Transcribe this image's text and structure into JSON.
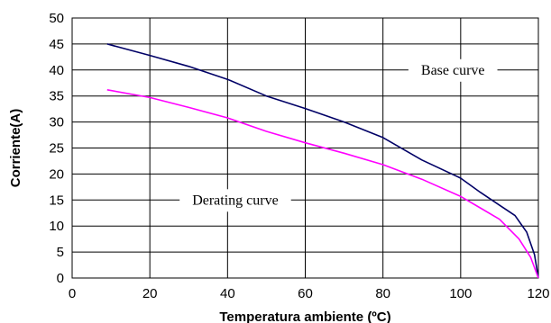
{
  "chart_data": {
    "type": "line",
    "title": "",
    "xlabel": "Temperatura ambiente (ºC)",
    "ylabel": "Corriente(A)",
    "xlim": [
      0,
      120
    ],
    "ylim": [
      0,
      50
    ],
    "xticks": [
      0,
      20,
      40,
      60,
      80,
      100,
      120
    ],
    "yticks": [
      0,
      5,
      10,
      15,
      20,
      25,
      30,
      35,
      40,
      45,
      50
    ],
    "grid": true,
    "legend": "none",
    "series": [
      {
        "color": "#000066",
        "points": [
          [
            9,
            45
          ],
          [
            20,
            42.8
          ],
          [
            30,
            40.7
          ],
          [
            40,
            38.2
          ],
          [
            50,
            35
          ],
          [
            60,
            32.6
          ],
          [
            70,
            30
          ],
          [
            80,
            27
          ],
          [
            90,
            22.7
          ],
          [
            100,
            19.2
          ],
          [
            105,
            16.5
          ],
          [
            110,
            14
          ],
          [
            114,
            12
          ],
          [
            117,
            8.8
          ],
          [
            119,
            4.5
          ],
          [
            120,
            0
          ]
        ]
      },
      {
        "color": "#ff00ff",
        "points": [
          [
            9,
            36.2
          ],
          [
            20,
            34.7
          ],
          [
            30,
            32.8
          ],
          [
            40,
            30.8
          ],
          [
            50,
            28.2
          ],
          [
            60,
            26
          ],
          [
            70,
            24
          ],
          [
            80,
            21.8
          ],
          [
            90,
            19
          ],
          [
            100,
            15.7
          ],
          [
            105,
            13.5
          ],
          [
            110,
            11.3
          ],
          [
            115,
            7.5
          ],
          [
            118,
            4
          ],
          [
            120,
            0
          ]
        ]
      }
    ],
    "annotations": [
      {
        "text": "Base curve",
        "x": 98,
        "y": 40
      },
      {
        "text": "Derating curve",
        "x": 42,
        "y": 15
      }
    ]
  }
}
